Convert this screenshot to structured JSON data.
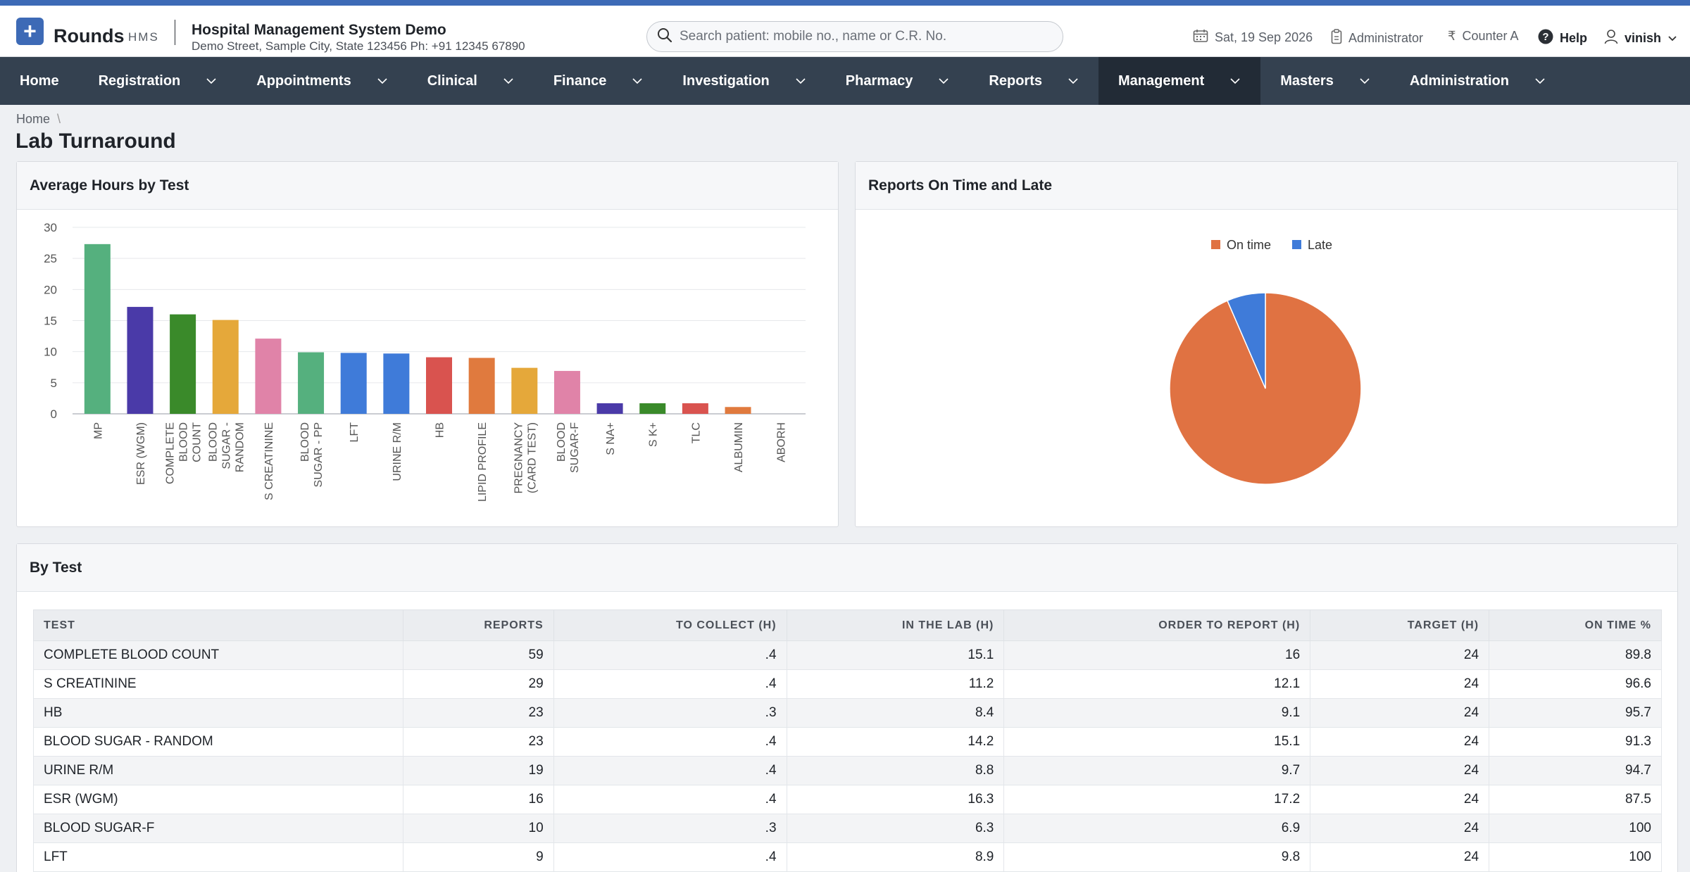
{
  "header": {
    "brand": "Rounds",
    "brand_sub": "HMS",
    "org_name": "Hospital Management System Demo",
    "org_address": "Demo Street, Sample City, State 123456 Ph: +91 12345 67890",
    "search_placeholder": "Search patient: mobile no., name or C.R. No.",
    "date": "Sat, 19 Sep 2026",
    "role": "Administrator",
    "counter": "Counter A",
    "help": "Help",
    "user": "vinish"
  },
  "nav": {
    "items": [
      {
        "label": "Home",
        "has_menu": false
      },
      {
        "label": "Registration",
        "has_menu": true
      },
      {
        "label": "Appointments",
        "has_menu": true
      },
      {
        "label": "Clinical",
        "has_menu": true
      },
      {
        "label": "Finance",
        "has_menu": true
      },
      {
        "label": "Investigation",
        "has_menu": true
      },
      {
        "label": "Pharmacy",
        "has_menu": true
      },
      {
        "label": "Reports",
        "has_menu": true
      },
      {
        "label": "Management",
        "has_menu": true,
        "active": true
      },
      {
        "label": "Masters",
        "has_menu": true
      },
      {
        "label": "Administration",
        "has_menu": true
      }
    ]
  },
  "breadcrumb": {
    "home": "Home",
    "sep": "\\"
  },
  "page_title": "Lab Turnaround",
  "bar_card": {
    "title": "Average Hours by Test"
  },
  "pie_card": {
    "title": "Reports On Time and Late"
  },
  "table_card": {
    "title": "By Test"
  },
  "chart_data": [
    {
      "type": "bar",
      "title": "Average Hours by Test",
      "categories": [
        [
          "MP"
        ],
        [
          "ESR (WGM)"
        ],
        [
          "COMPLETE",
          "BLOOD",
          "COUNT"
        ],
        [
          "BLOOD",
          "SUGAR -",
          "RANDOM"
        ],
        [
          "S CREATININE"
        ],
        [
          "BLOOD",
          "SUGAR - PP"
        ],
        [
          "LFT"
        ],
        [
          "URINE R/M"
        ],
        [
          "HB"
        ],
        [
          "LIPID PROFILE"
        ],
        [
          "PREGNANCY",
          "(CARD TEST)"
        ],
        [
          "BLOOD",
          "SUGAR-F"
        ],
        [
          "S NA+"
        ],
        [
          "S K+"
        ],
        [
          "TLC"
        ],
        [
          "ALBUMIN"
        ],
        [
          "ABORH"
        ]
      ],
      "values": [
        27.3,
        17.2,
        16.0,
        15.1,
        12.1,
        9.9,
        9.8,
        9.7,
        9.1,
        9.0,
        7.4,
        6.9,
        1.7,
        1.7,
        1.7,
        1.1,
        0
      ],
      "colors": [
        "#55b07e",
        "#4a3aa8",
        "#3a8a2a",
        "#e5a83a",
        "#e083a8",
        "#55b07e",
        "#3f7bd9",
        "#3f7bd9",
        "#d9534f",
        "#e07a3e",
        "#e5a83a",
        "#e083a8",
        "#4a3aa8",
        "#3a8a2a",
        "#d9534f",
        "#e07a3e",
        "#55b07e"
      ],
      "yticks": [
        0,
        5,
        10,
        15,
        20,
        25,
        30
      ],
      "ylim": [
        0,
        30
      ],
      "grid": true,
      "legend": "none"
    },
    {
      "type": "pie",
      "title": "Reports On Time and Late",
      "legend_position": "top",
      "slices": [
        {
          "name": "On time",
          "value": 93.5,
          "color": "#e07242"
        },
        {
          "name": "Late",
          "value": 6.5,
          "color": "#3f7bd9"
        }
      ]
    }
  ],
  "table": {
    "columns": [
      "TEST",
      "REPORTS",
      "TO COLLECT (H)",
      "IN THE LAB (H)",
      "ORDER TO REPORT (H)",
      "TARGET (H)",
      "ON TIME %"
    ],
    "rows": [
      [
        "COMPLETE BLOOD COUNT",
        "59",
        ".4",
        "15.1",
        "16",
        "24",
        "89.8"
      ],
      [
        "S CREATININE",
        "29",
        ".4",
        "11.2",
        "12.1",
        "24",
        "96.6"
      ],
      [
        "HB",
        "23",
        ".3",
        "8.4",
        "9.1",
        "24",
        "95.7"
      ],
      [
        "BLOOD SUGAR - RANDOM",
        "23",
        ".4",
        "14.2",
        "15.1",
        "24",
        "91.3"
      ],
      [
        "URINE R/M",
        "19",
        ".4",
        "8.8",
        "9.7",
        "24",
        "94.7"
      ],
      [
        "ESR (WGM)",
        "16",
        ".4",
        "16.3",
        "17.2",
        "24",
        "87.5"
      ],
      [
        "BLOOD SUGAR-F",
        "10",
        ".3",
        "6.3",
        "6.9",
        "24",
        "100"
      ],
      [
        "LFT",
        "9",
        ".4",
        "8.9",
        "9.8",
        "24",
        "100"
      ]
    ]
  }
}
